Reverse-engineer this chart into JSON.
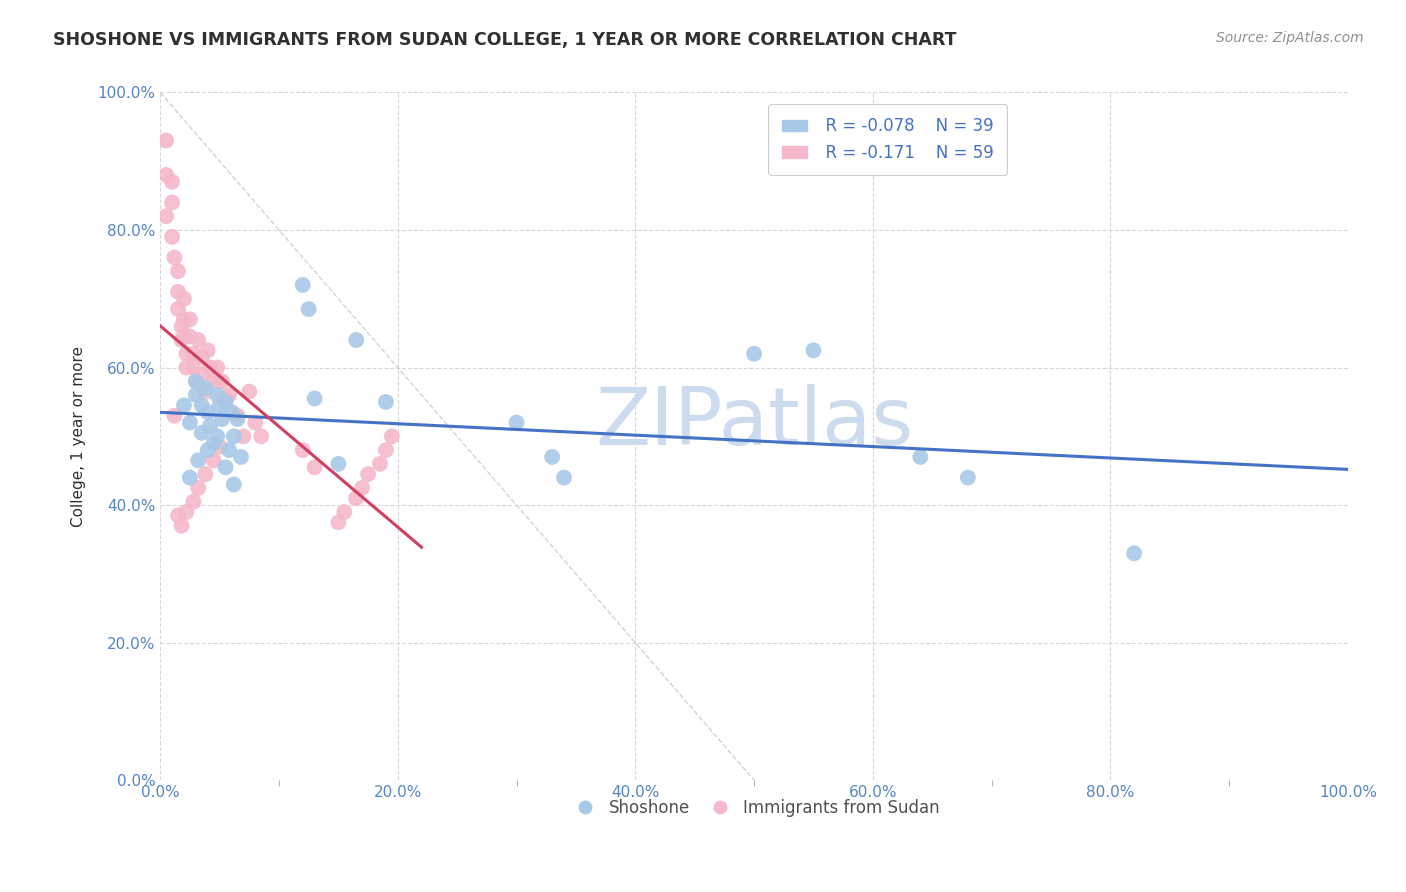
{
  "title": "SHOSHONE VS IMMIGRANTS FROM SUDAN COLLEGE, 1 YEAR OR MORE CORRELATION CHART",
  "source_text": "Source: ZipAtlas.com",
  "ylabel": "College, 1 year or more",
  "xlim": [
    0.0,
    1.0
  ],
  "ylim": [
    0.0,
    1.0
  ],
  "legend_r1": "R = -0.078",
  "legend_n1": "N = 39",
  "legend_r2": "R = -0.171",
  "legend_n2": "N = 59",
  "blue_color": "#a8c8e8",
  "pink_color": "#f4b8c8",
  "line_blue": "#4472c4",
  "line_pink": "#d04060",
  "title_color": "#303030",
  "source_color": "#909090",
  "watermark_color": "#ccdcee",
  "background_color": "#ffffff",
  "grid_color": "#d8d8d8",
  "blue_x": [
    0.02,
    0.025,
    0.03,
    0.03,
    0.035,
    0.035,
    0.038,
    0.04,
    0.042,
    0.045,
    0.048,
    0.05,
    0.052,
    0.055,
    0.058,
    0.06,
    0.062,
    0.065,
    0.068,
    0.12,
    0.125,
    0.13,
    0.15,
    0.165,
    0.19,
    0.3,
    0.33,
    0.34,
    0.5,
    0.55,
    0.64,
    0.68,
    0.82,
    0.025,
    0.032,
    0.04,
    0.048,
    0.055,
    0.062
  ],
  "blue_y": [
    0.545,
    0.52,
    0.58,
    0.56,
    0.545,
    0.505,
    0.57,
    0.535,
    0.515,
    0.49,
    0.56,
    0.545,
    0.525,
    0.55,
    0.48,
    0.535,
    0.5,
    0.525,
    0.47,
    0.72,
    0.685,
    0.555,
    0.46,
    0.64,
    0.55,
    0.52,
    0.47,
    0.44,
    0.62,
    0.625,
    0.47,
    0.44,
    0.33,
    0.44,
    0.465,
    0.48,
    0.5,
    0.455,
    0.43
  ],
  "pink_x": [
    0.005,
    0.005,
    0.005,
    0.01,
    0.01,
    0.01,
    0.012,
    0.015,
    0.015,
    0.015,
    0.018,
    0.018,
    0.02,
    0.02,
    0.02,
    0.022,
    0.022,
    0.025,
    0.025,
    0.028,
    0.028,
    0.03,
    0.032,
    0.035,
    0.035,
    0.038,
    0.04,
    0.042,
    0.045,
    0.048,
    0.05,
    0.052,
    0.055,
    0.058,
    0.06,
    0.065,
    0.07,
    0.075,
    0.08,
    0.085,
    0.12,
    0.13,
    0.15,
    0.155,
    0.165,
    0.17,
    0.175,
    0.185,
    0.19,
    0.195,
    0.012,
    0.015,
    0.018,
    0.022,
    0.028,
    0.032,
    0.038,
    0.045,
    0.05
  ],
  "pink_y": [
    0.93,
    0.88,
    0.82,
    0.87,
    0.84,
    0.79,
    0.76,
    0.74,
    0.71,
    0.685,
    0.66,
    0.64,
    0.7,
    0.67,
    0.645,
    0.62,
    0.6,
    0.67,
    0.645,
    0.62,
    0.6,
    0.58,
    0.64,
    0.615,
    0.59,
    0.565,
    0.625,
    0.6,
    0.58,
    0.6,
    0.58,
    0.58,
    0.555,
    0.56,
    0.535,
    0.53,
    0.5,
    0.565,
    0.52,
    0.5,
    0.48,
    0.455,
    0.375,
    0.39,
    0.41,
    0.425,
    0.445,
    0.46,
    0.48,
    0.5,
    0.53,
    0.385,
    0.37,
    0.39,
    0.405,
    0.425,
    0.445,
    0.465,
    0.485
  ]
}
